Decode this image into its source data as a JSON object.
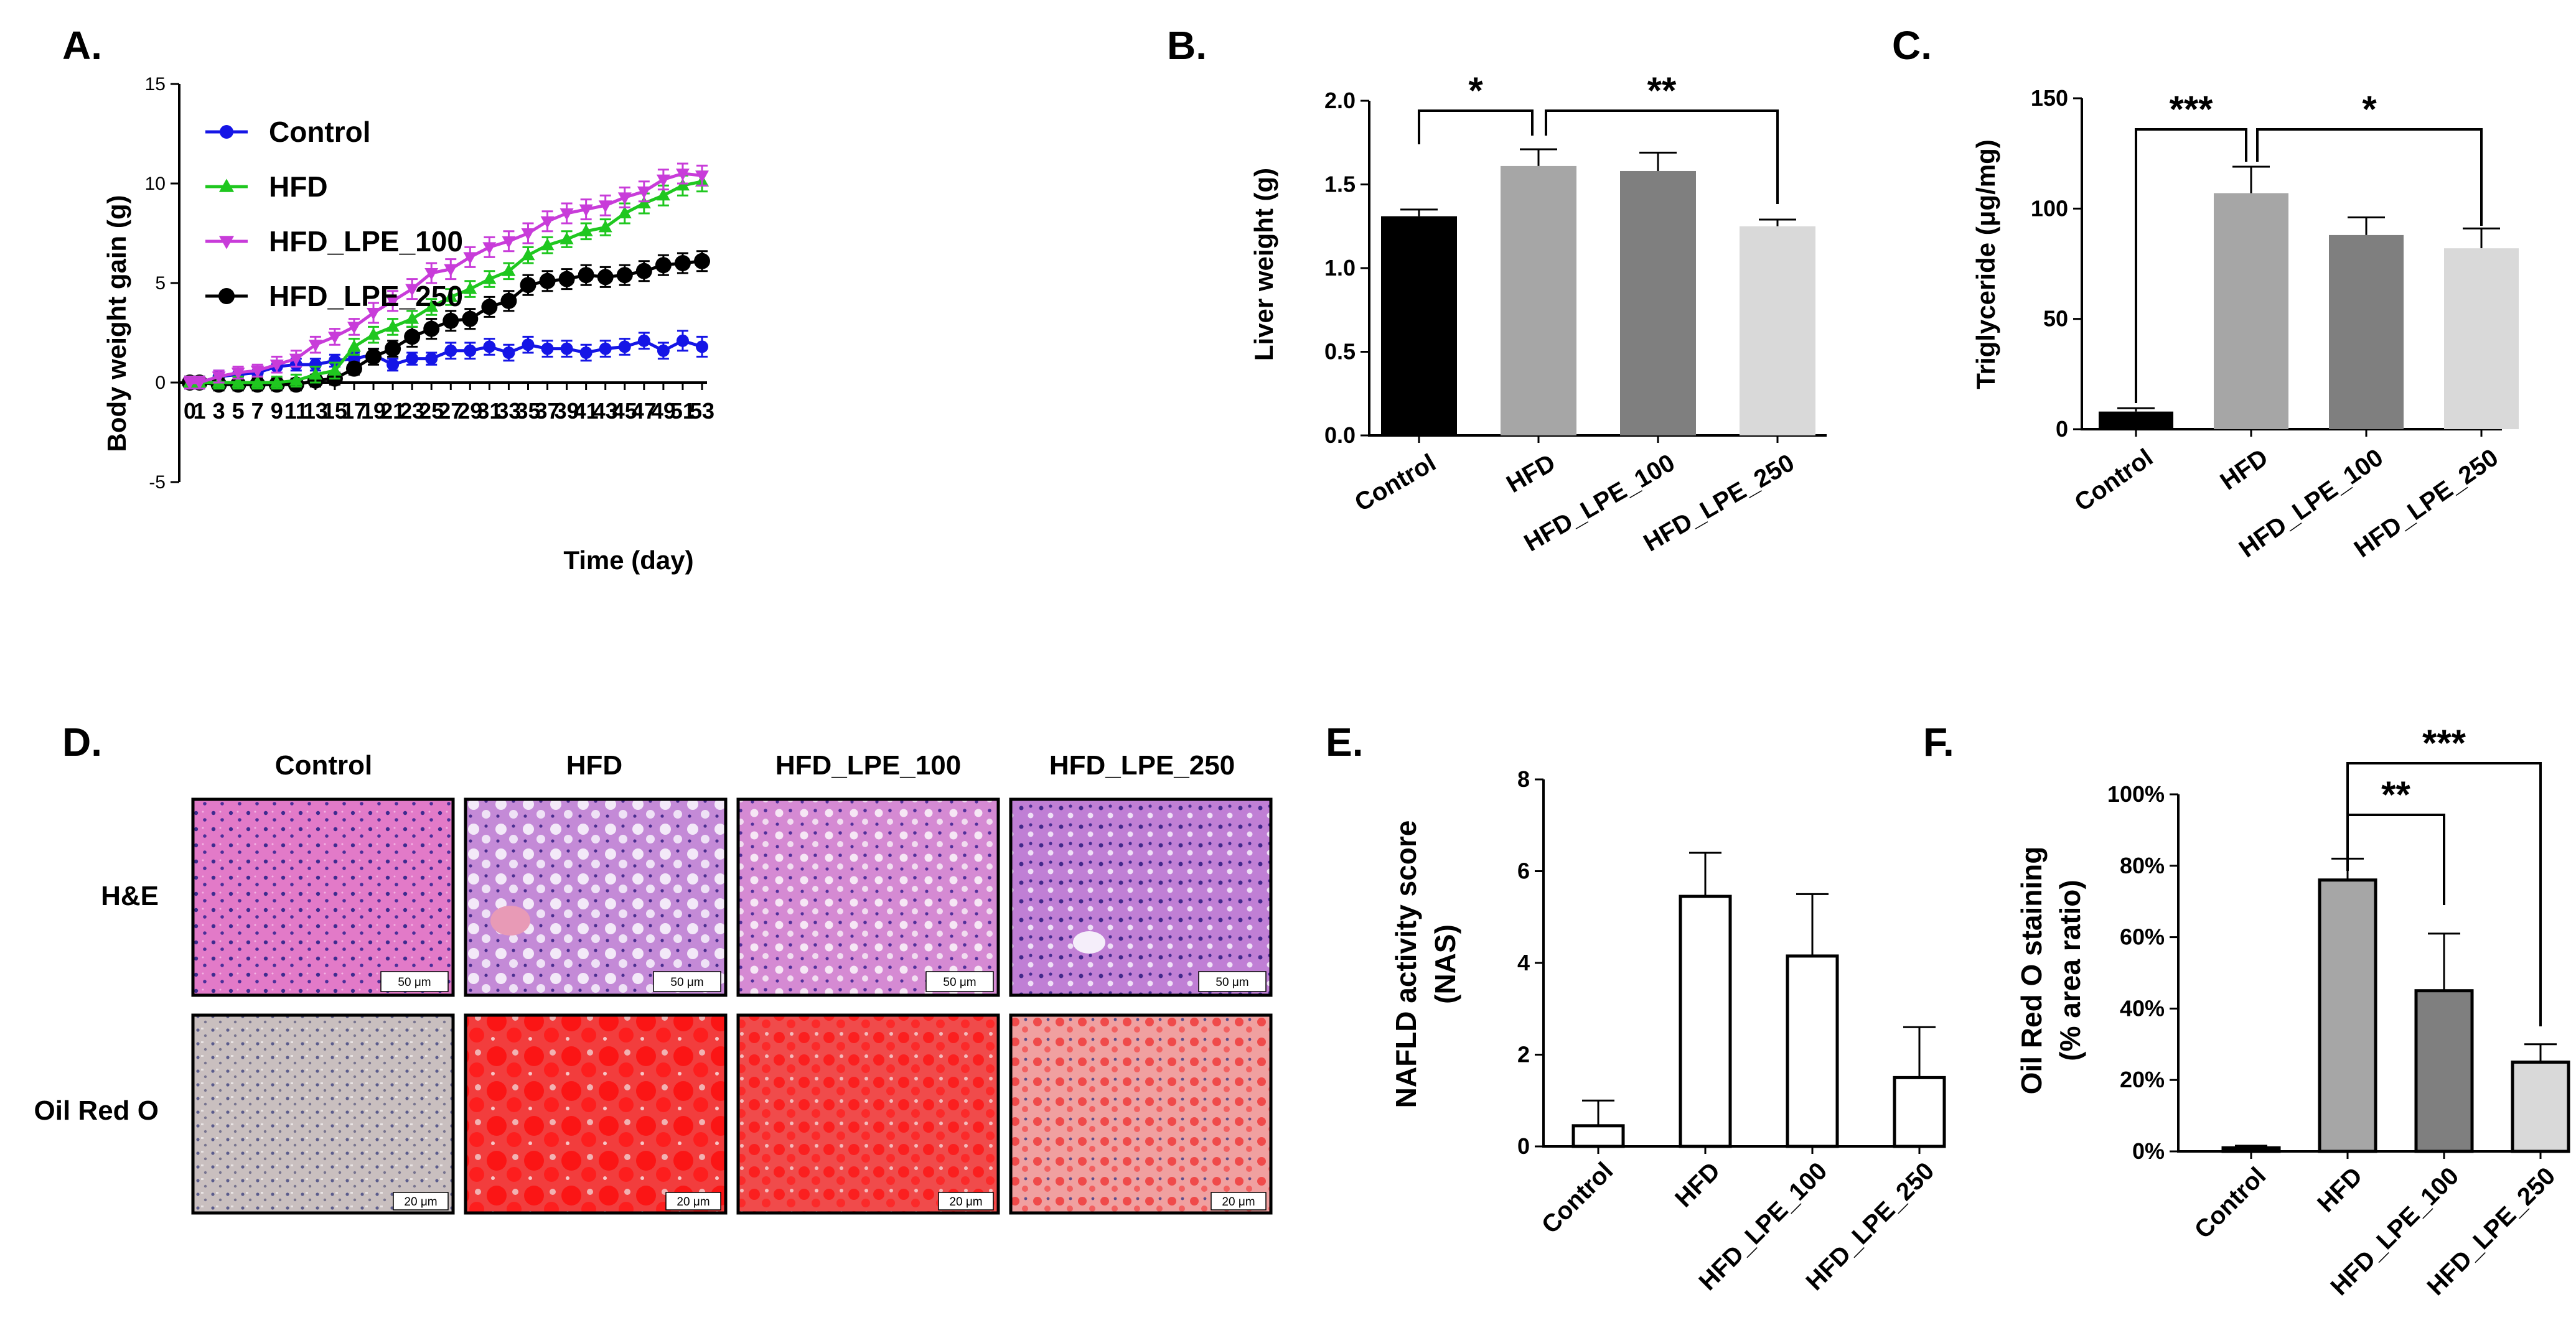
{
  "chart_data": [
    {
      "id": "A",
      "panel_label": "A.",
      "type": "line",
      "xlabel": "Time (day)",
      "ylabel": "Body weight gain (g)",
      "ylim": [
        -5,
        15
      ],
      "yticks": [
        "-5",
        "0",
        "5",
        "10",
        "15"
      ],
      "xtick_labels": [
        "0",
        "1",
        "3",
        "5",
        "7",
        "9",
        "11",
        "13",
        "15",
        "17",
        "19",
        "21",
        "23",
        "25",
        "27",
        "29",
        "31",
        "33",
        "35",
        "37",
        "39",
        "41",
        "43",
        "45",
        "47",
        "49",
        "51",
        "53"
      ],
      "x": [
        0,
        1,
        3,
        5,
        7,
        9,
        11,
        13,
        15,
        17,
        19,
        21,
        23,
        25,
        27,
        29,
        31,
        33,
        35,
        37,
        39,
        41,
        43,
        45,
        47,
        49,
        51,
        53
      ],
      "legend_position": "top-left",
      "series": [
        {
          "name": "Control",
          "color": "#1515e6",
          "marker": "circle",
          "values": [
            0,
            0,
            0.3,
            0.4,
            0.5,
            0.8,
            0.9,
            0.9,
            1.1,
            1.2,
            1.4,
            0.9,
            1.2,
            1.2,
            1.6,
            1.6,
            1.8,
            1.5,
            1.9,
            1.7,
            1.7,
            1.5,
            1.7,
            1.8,
            2.1,
            1.6,
            2.1,
            1.8
          ],
          "errors": [
            0.3,
            0.3,
            0.3,
            0.3,
            0.3,
            0.3,
            0.3,
            0.3,
            0.3,
            0.3,
            0.3,
            0.3,
            0.3,
            0.3,
            0.4,
            0.4,
            0.4,
            0.4,
            0.4,
            0.4,
            0.4,
            0.4,
            0.4,
            0.4,
            0.4,
            0.4,
            0.5,
            0.5
          ]
        },
        {
          "name": "HFD",
          "color": "#1fc71f",
          "marker": "triangle-up",
          "values": [
            0,
            0,
            0,
            0,
            0,
            0,
            0.1,
            0.4,
            0.6,
            1.8,
            2.4,
            2.8,
            3.2,
            3.8,
            4.3,
            4.7,
            5.2,
            5.6,
            6.4,
            6.9,
            7.2,
            7.6,
            7.8,
            8.5,
            9.0,
            9.4,
            9.9,
            10.1
          ],
          "errors": [
            0.3,
            0.3,
            0.3,
            0.3,
            0.3,
            0.3,
            0.3,
            0.4,
            0.4,
            0.4,
            0.4,
            0.4,
            0.4,
            0.4,
            0.4,
            0.4,
            0.4,
            0.4,
            0.4,
            0.4,
            0.4,
            0.4,
            0.4,
            0.5,
            0.5,
            0.5,
            0.5,
            0.5
          ]
        },
        {
          "name": "HFD_LPE_100",
          "color": "#c83cd9",
          "marker": "triangle-down",
          "values": [
            0,
            0,
            0.3,
            0.5,
            0.6,
            0.9,
            1.2,
            1.9,
            2.3,
            2.8,
            3.5,
            4.1,
            4.7,
            5.5,
            5.7,
            6.3,
            6.8,
            7.1,
            7.5,
            8.1,
            8.5,
            8.7,
            8.9,
            9.3,
            9.6,
            10.2,
            10.5,
            10.4
          ],
          "errors": [
            0.3,
            0.3,
            0.3,
            0.3,
            0.3,
            0.4,
            0.4,
            0.4,
            0.4,
            0.4,
            0.5,
            0.5,
            0.5,
            0.5,
            0.5,
            0.5,
            0.5,
            0.5,
            0.5,
            0.5,
            0.5,
            0.5,
            0.5,
            0.5,
            0.5,
            0.5,
            0.5,
            0.5
          ]
        },
        {
          "name": "HFD_LPE_250",
          "color": "#000000",
          "marker": "circle",
          "values": [
            0,
            0,
            -0.1,
            -0.1,
            -0.1,
            -0.1,
            -0.1,
            0.1,
            0.2,
            0.7,
            1.3,
            1.7,
            2.3,
            2.7,
            3.1,
            3.2,
            3.8,
            4.1,
            4.9,
            5.1,
            5.2,
            5.4,
            5.3,
            5.4,
            5.6,
            5.9,
            6.0,
            6.1
          ],
          "errors": [
            0.3,
            0.3,
            0.3,
            0.3,
            0.3,
            0.3,
            0.3,
            0.3,
            0.3,
            0.3,
            0.4,
            0.4,
            0.5,
            0.5,
            0.5,
            0.5,
            0.5,
            0.5,
            0.5,
            0.5,
            0.5,
            0.5,
            0.5,
            0.5,
            0.5,
            0.5,
            0.5,
            0.5
          ]
        }
      ]
    },
    {
      "id": "B",
      "panel_label": "B.",
      "type": "bar",
      "ylabel": "Liver weight (g)",
      "ylim": [
        0,
        2.0
      ],
      "yticks": [
        "0.0",
        "0.5",
        "1.0",
        "1.5",
        "2.0"
      ],
      "categories": [
        "Control",
        "HFD",
        "HFD_LPE_100",
        "HFD_LPE_250"
      ],
      "values": [
        1.31,
        1.61,
        1.58,
        1.25
      ],
      "errors": [
        0.04,
        0.1,
        0.11,
        0.04
      ],
      "colors": [
        "#000000",
        "#a6a6a6",
        "#7f7f7f",
        "#d9d9d9"
      ],
      "significance": [
        {
          "from": "Control",
          "to": "HFD",
          "label": "*"
        },
        {
          "from": "HFD",
          "to": "HFD_LPE_250",
          "label": "**"
        }
      ]
    },
    {
      "id": "C",
      "panel_label": "C.",
      "type": "bar",
      "ylabel": "Triglyceride (μg/mg)",
      "ylim": [
        0,
        150
      ],
      "yticks": [
        "0",
        "50",
        "100",
        "150"
      ],
      "categories": [
        "Control",
        "HFD",
        "HFD_LPE_100",
        "HFD_LPE_250"
      ],
      "values": [
        8,
        107,
        88,
        82
      ],
      "errors": [
        1.5,
        12,
        8,
        9
      ],
      "colors": [
        "#000000",
        "#a6a6a6",
        "#7f7f7f",
        "#d9d9d9"
      ],
      "significance": [
        {
          "from": "Control",
          "to": "HFD",
          "label": "***"
        },
        {
          "from": "HFD",
          "to": "HFD_LPE_250",
          "label": "*"
        }
      ]
    },
    {
      "id": "E",
      "panel_label": "E.",
      "type": "bar",
      "ylabel_lines": [
        "NAFLD activity score",
        "(NAS)"
      ],
      "ylim": [
        0,
        8
      ],
      "yticks": [
        "0",
        "2",
        "4",
        "6",
        "8"
      ],
      "categories": [
        "Control",
        "HFD",
        "HFD_LPE_100",
        "HFD_LPE_250"
      ],
      "values": [
        0.45,
        5.45,
        4.15,
        1.5
      ],
      "errors": [
        0.55,
        0.95,
        1.35,
        1.1
      ],
      "colors": [
        "#ffffff",
        "#ffffff",
        "#ffffff",
        "#ffffff"
      ]
    },
    {
      "id": "F",
      "panel_label": "F.",
      "type": "bar",
      "ylabel_lines": [
        "Oil Red O staining",
        "(% area ratio)"
      ],
      "ylim": [
        0,
        100
      ],
      "yticks": [
        "0%",
        "20%",
        "40%",
        "60%",
        "80%",
        "100%"
      ],
      "categories": [
        "Control",
        "HFD",
        "HFD_LPE_100",
        "HFD_LPE_250"
      ],
      "values": [
        1,
        76,
        45,
        25
      ],
      "errors": [
        0.6,
        6,
        16,
        5
      ],
      "colors": [
        "#000000",
        "#a6a6a6",
        "#7f7f7f",
        "#d9d9d9"
      ],
      "significance": [
        {
          "from": "HFD",
          "to": "HFD_LPE_100",
          "label": "**"
        },
        {
          "from": "HFD",
          "to": "HFD_LPE_250",
          "label": "***"
        }
      ]
    }
  ],
  "histology": {
    "panel_label": "D.",
    "columns": [
      "Control",
      "HFD",
      "HFD_LPE_100",
      "HFD_LPE_250"
    ],
    "rows": [
      {
        "label": "H&E",
        "scale": "50 μm"
      },
      {
        "label": "Oil Red O",
        "scale": "20 μm"
      }
    ]
  }
}
